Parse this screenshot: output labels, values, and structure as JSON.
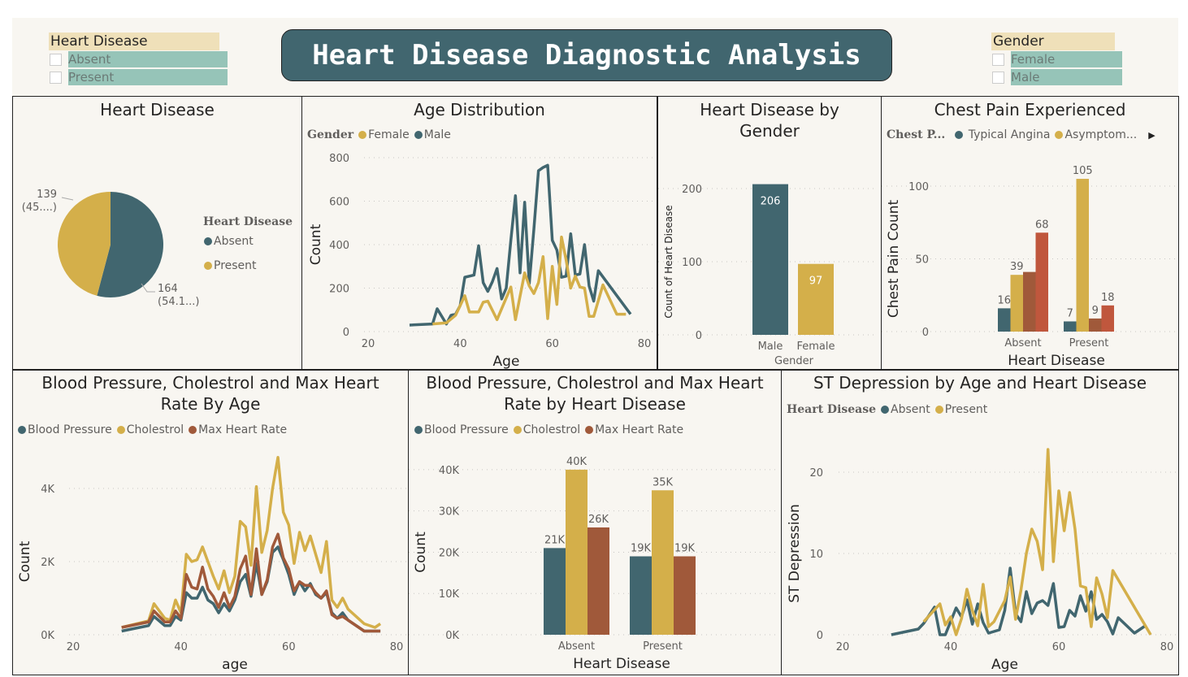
{
  "title": "Heart Disease Diagnostic Analysis",
  "colors": {
    "teal": "#41666F",
    "gold": "#D4AF4A",
    "brown": "#A0593A",
    "red": "#C0573D",
    "bg": "#F8F6F1"
  },
  "slicers": [
    {
      "header": "Heart Disease",
      "items": [
        "Absent",
        "Present"
      ]
    },
    {
      "header": "Gender",
      "items": [
        "Female",
        "Male"
      ]
    }
  ],
  "pie": {
    "title": "Heart Disease",
    "legend_title": "Heart Disease",
    "chart_data": {
      "type": "pie",
      "categories": [
        "Absent",
        "Present"
      ],
      "values": [
        164,
        139
      ],
      "labels": [
        {
          "value": "164",
          "pct": "(54.1...)"
        },
        {
          "value": "139",
          "pct": "(45....)"
        }
      ]
    }
  },
  "age": {
    "title": "Age Distribution",
    "legend_title": "Gender",
    "legend": [
      "Female",
      "Male"
    ],
    "chart_data": {
      "type": "line",
      "xlabel": "Age",
      "ylabel": "Count",
      "xlim": [
        20,
        80
      ],
      "ylim": [
        0,
        800
      ],
      "xticks": [
        20,
        40,
        60,
        80
      ],
      "yticks": [
        0,
        200,
        400,
        600,
        800
      ],
      "series": [
        {
          "name": "Male",
          "color": "teal",
          "x": [
            29,
            34,
            35,
            37,
            38,
            39,
            40,
            41,
            42,
            43,
            44,
            45,
            46,
            47,
            48,
            49,
            50,
            51,
            52,
            53,
            54,
            55,
            56,
            57,
            58,
            59,
            60,
            61,
            62,
            63,
            64,
            65,
            66,
            67,
            68,
            69,
            70,
            77
          ],
          "y": [
            30,
            35,
            105,
            35,
            75,
            80,
            120,
            250,
            255,
            260,
            395,
            225,
            185,
            230,
            290,
            150,
            200,
            420,
            625,
            270,
            595,
            220,
            470,
            740,
            755,
            765,
            420,
            375,
            250,
            255,
            450,
            260,
            265,
            400,
            210,
            140,
            280,
            80
          ]
        },
        {
          "name": "Female",
          "color": "gold",
          "x": [
            34,
            37,
            39,
            41,
            42,
            44,
            45,
            46,
            48,
            50,
            51,
            52,
            54,
            55,
            56,
            57,
            58,
            59,
            60,
            61,
            62,
            63,
            64,
            65,
            66,
            67,
            68,
            69,
            71,
            74,
            76
          ],
          "y": [
            35,
            40,
            75,
            165,
            90,
            90,
            135,
            140,
            55,
            155,
            205,
            55,
            270,
            210,
            175,
            225,
            345,
            60,
            300,
            125,
            435,
            330,
            200,
            255,
            205,
            200,
            70,
            70,
            215,
            80,
            80
          ]
        }
      ]
    }
  },
  "gender": {
    "title": "Heart Disease by Gender",
    "chart_data": {
      "type": "bar",
      "xlabel": "Gender",
      "ylabel": "Count of Heart Disease",
      "categories": [
        "Male",
        "Female"
      ],
      "values": [
        206,
        97
      ],
      "ylim": [
        0,
        200
      ],
      "yticks": [
        0,
        100,
        200
      ]
    }
  },
  "chest": {
    "title": "Chest Pain Experienced",
    "legend_title": "Chest P...",
    "legend": [
      "Typical Angina",
      "Asymptom..."
    ],
    "chart_data": {
      "type": "bar",
      "xlabel": "Heart Disease",
      "ylabel": "Chest Pain Count",
      "categories": [
        "Absent",
        "Present"
      ],
      "yticks": [
        0,
        50,
        100
      ],
      "series": [
        {
          "name": "Typical Angina",
          "color": "teal",
          "values": [
            16,
            7
          ]
        },
        {
          "name": "Asymptom...",
          "color": "gold",
          "values": [
            39,
            105
          ]
        },
        {
          "color": "brown",
          "values": [
            41,
            9
          ]
        },
        {
          "color": "red",
          "values": [
            68,
            18
          ]
        }
      ],
      "labels": [
        [
          "16",
          "39",
          "",
          "68"
        ],
        [
          "7",
          "105",
          "9",
          "18"
        ]
      ]
    }
  },
  "bpage": {
    "title": "Blood Pressure, Cholestrol and Max Heart Rate By Age",
    "legend": [
      "Blood Pressure",
      "Cholestrol",
      "Max Heart Rate"
    ],
    "chart_data": {
      "type": "line",
      "xlabel": "age",
      "ylabel": "Count",
      "xlim": [
        20,
        80
      ],
      "ylim": [
        0,
        4000
      ],
      "xticks": [
        20,
        40,
        60,
        80
      ],
      "yticks": [
        0,
        2000,
        4000
      ],
      "ytick_labels": [
        "0K",
        "2K",
        "4K"
      ],
      "x": [
        29,
        34,
        35,
        37,
        38,
        39,
        40,
        41,
        42,
        43,
        44,
        45,
        46,
        47,
        48,
        49,
        50,
        51,
        52,
        53,
        54,
        55,
        56,
        57,
        58,
        59,
        60,
        61,
        62,
        63,
        64,
        65,
        66,
        67,
        68,
        69,
        70,
        71,
        74,
        76,
        77
      ],
      "series": [
        {
          "name": "Cholestrol",
          "color": "gold",
          "y": [
            200,
            380,
            850,
            450,
            400,
            950,
            600,
            2200,
            2000,
            2050,
            2400,
            2000,
            1600,
            1250,
            1750,
            1150,
            1600,
            3100,
            2950,
            1900,
            4050,
            2250,
            2850,
            4000,
            4850,
            3350,
            3000,
            1950,
            2800,
            2300,
            2700,
            2200,
            1700,
            2550,
            950,
            750,
            1000,
            700,
            300,
            200,
            300
          ]
        },
        {
          "name": "Blood Pressure",
          "color": "teal",
          "y": [
            100,
            250,
            500,
            250,
            250,
            500,
            400,
            1150,
            1000,
            1000,
            1300,
            950,
            850,
            600,
            850,
            650,
            950,
            1450,
            1650,
            1050,
            1950,
            1100,
            1450,
            2250,
            2400,
            2050,
            1650,
            1100,
            1450,
            1200,
            1400,
            1100,
            1000,
            1150,
            600,
            450,
            600,
            400,
            100,
            100,
            100
          ]
        },
        {
          "name": "Max Heart Rate",
          "color": "brown",
          "y": [
            200,
            350,
            650,
            350,
            350,
            650,
            450,
            1650,
            1300,
            1250,
            1850,
            1250,
            1050,
            750,
            1150,
            750,
            1050,
            1800,
            2150,
            1100,
            2350,
            1100,
            1500,
            2400,
            2750,
            2100,
            1800,
            1200,
            1450,
            1350,
            1350,
            1150,
            1000,
            1200,
            550,
            450,
            500,
            400,
            100,
            100,
            100
          ]
        }
      ]
    }
  },
  "bphd": {
    "title": "Blood Pressure, Cholestrol and Max Heart Rate by Heart Disease",
    "legend": [
      "Blood Pressure",
      "Cholestrol",
      "Max Heart Rate"
    ],
    "chart_data": {
      "type": "bar",
      "xlabel": "Heart Disease",
      "ylabel": "Count",
      "categories": [
        "Absent",
        "Present"
      ],
      "ylim": [
        0,
        40000
      ],
      "yticks": [
        0,
        10000,
        20000,
        30000,
        40000
      ],
      "ytick_labels": [
        "0K",
        "10K",
        "20K",
        "30K",
        "40K"
      ],
      "series": [
        {
          "name": "Blood Pressure",
          "color": "teal",
          "values": [
            21000,
            19000
          ]
        },
        {
          "name": "Cholestrol",
          "color": "gold",
          "values": [
            40000,
            35000
          ]
        },
        {
          "name": "Max Heart Rate",
          "color": "brown",
          "values": [
            26000,
            19000
          ]
        }
      ],
      "labels": [
        [
          "21K",
          "40K",
          "26K"
        ],
        [
          "19K",
          "35K",
          "19K"
        ]
      ]
    }
  },
  "st": {
    "title": "ST Depression by Age and Heart Disease",
    "legend_title": "Heart Disease",
    "legend": [
      "Absent",
      "Present"
    ],
    "chart_data": {
      "type": "line",
      "xlabel": "Age",
      "ylabel": "ST Depression",
      "xlim": [
        20,
        80
      ],
      "ylim": [
        0,
        20
      ],
      "xticks": [
        20,
        40,
        60,
        80
      ],
      "yticks": [
        0,
        10,
        20
      ],
      "series": [
        {
          "name": "Absent",
          "color": "teal",
          "x": [
            29,
            34,
            35,
            37,
            38,
            39,
            41,
            42,
            43,
            44,
            45,
            46,
            47,
            49,
            50,
            51,
            52,
            53,
            54,
            55,
            56,
            57,
            58,
            59,
            60,
            61,
            62,
            63,
            64,
            65,
            66,
            67,
            68,
            69,
            70,
            71,
            74,
            76
          ],
          "y": [
            0,
            0.7,
            1.4,
            3.4,
            0,
            0,
            3.3,
            2.2,
            4.3,
            1.3,
            3.8,
            1.5,
            0.2,
            0.6,
            3,
            8.2,
            2.6,
            1.6,
            5.3,
            2.6,
            3.9,
            4.2,
            3.6,
            6.3,
            0.9,
            1,
            3,
            2.3,
            4.8,
            2.9,
            5.3,
            1.9,
            2.5,
            1.6,
            0.1,
            2.1,
            0.2,
            1.1
          ]
        },
        {
          "name": "Present",
          "color": "gold",
          "x": [
            35,
            38,
            39,
            40,
            41,
            42,
            43,
            44,
            45,
            46,
            47,
            48,
            50,
            51,
            52,
            53,
            54,
            55,
            56,
            57,
            58,
            59,
            60,
            61,
            62,
            63,
            64,
            65,
            66,
            67,
            68,
            69,
            70,
            77
          ],
          "y": [
            1.6,
            3.8,
            1.2,
            2.2,
            0,
            2,
            5.6,
            3,
            1.1,
            6.2,
            1,
            1.6,
            4.2,
            7.1,
            1.9,
            5.5,
            10,
            13,
            11.5,
            8,
            22.8,
            9,
            17.7,
            12.8,
            17.5,
            13,
            6,
            5.8,
            1,
            7,
            5,
            2.1,
            7.9,
            0
          ]
        }
      ]
    }
  }
}
